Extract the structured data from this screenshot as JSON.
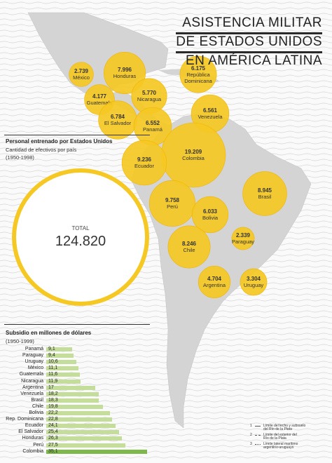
{
  "title": [
    "ASISTENCIA MILITAR",
    "DE ESTADOS UNIDOS",
    "EN AMÉRICA LATINA"
  ],
  "personnel": {
    "heading": "Personal entrenado por Estados Unidos",
    "sub1": "Cantidad de efectivos por país",
    "sub2": "(1950-1998)",
    "total_label": "TOTAL",
    "total_value": "124.820"
  },
  "subsidy": {
    "heading": "Subsidio en millones de dólares",
    "sub": "(1950-1999)"
  },
  "legend": [
    {
      "num": "1",
      "text": [
        "Límite del lecho y subsuelo",
        "del Río de la Plata"
      ]
    },
    {
      "num": "2",
      "text": [
        "Límite del exterior del",
        "Río de la Plata"
      ]
    },
    {
      "num": "3",
      "text": [
        "Límite lateral marítimo",
        "argentino-uruguayo"
      ]
    }
  ],
  "colors": {
    "bubble": "#f5c823",
    "bubble_stroke": "#f0b400",
    "bar": "#c5dd9b",
    "bar_top": "#7fb84a",
    "land": "#d4d4d4",
    "wave": "#cfcfcf"
  },
  "chart_data": [
    {
      "type": "bubble-map",
      "title": "Personal entrenado por Estados Unidos",
      "subtitle": "Cantidad de efectivos por país (1950-1998)",
      "total": "124.820",
      "points": [
        {
          "country": "México",
          "value": "2.739"
        },
        {
          "country": "Honduras",
          "value": "7.996"
        },
        {
          "country": "República Dominicana",
          "value": "6.175"
        },
        {
          "country": "Guatemala",
          "value": "4.177"
        },
        {
          "country": "Nicaragua",
          "value": "5.770"
        },
        {
          "country": "El Salvador",
          "value": "6.784"
        },
        {
          "country": "Panamá",
          "value": "6.552"
        },
        {
          "country": "Venezuela",
          "value": "6.561"
        },
        {
          "country": "Colombia",
          "value": "19.209"
        },
        {
          "country": "Ecuador",
          "value": "9.236"
        },
        {
          "country": "Brasil",
          "value": "8.945"
        },
        {
          "country": "Perú",
          "value": "9.758"
        },
        {
          "country": "Bolivia",
          "value": "6.033"
        },
        {
          "country": "Paraguay",
          "value": "2.339"
        },
        {
          "country": "Chile",
          "value": "8.246"
        },
        {
          "country": "Argentina",
          "value": "4.704"
        },
        {
          "country": "Uruguay",
          "value": "3.304"
        }
      ]
    },
    {
      "type": "bar",
      "title": "Subsidio en millones de dólares",
      "subtitle": "(1950-1999)",
      "categories": [
        "Panamá",
        "Paraguay",
        "Uruguay",
        "México",
        "Guatemala",
        "Nicaragua",
        "Argentina",
        "Venezuela",
        "Brasil",
        "Chile",
        "Bolivia",
        "Rep. Dominicana",
        "Ecuador",
        "El Salvador",
        "Honduras",
        "Perú",
        "Colombia"
      ],
      "values": [
        9.1,
        9.4,
        10.6,
        11.1,
        11.6,
        11.9,
        17,
        18.2,
        18.3,
        19.8,
        22.2,
        22.8,
        24.1,
        25.4,
        26.3,
        27.5,
        35.1
      ],
      "value_labels": [
        "9,1",
        "9,4",
        "10,6",
        "11,1",
        "11,6",
        "11,9",
        "17",
        "18,2",
        "18,3",
        "19,8",
        "22,2",
        "22,8",
        "24,1",
        "25,4",
        "26,3",
        "27,5",
        "35,1"
      ]
    }
  ]
}
